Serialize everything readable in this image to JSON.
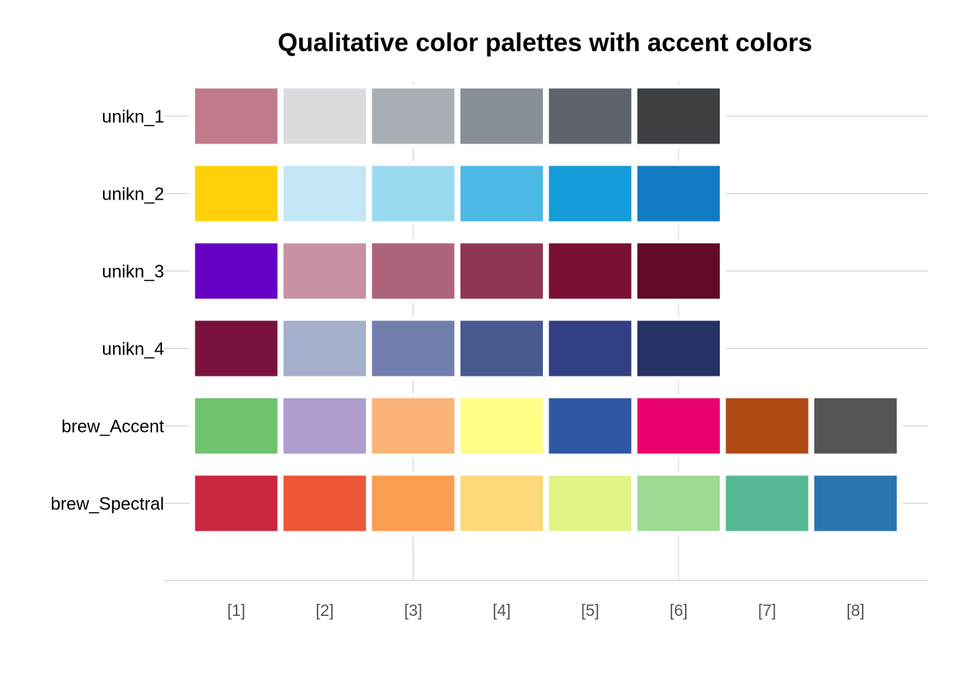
{
  "chart_data": {
    "type": "table",
    "title": "Qualitative color palettes with accent colors",
    "xlabel": "",
    "ylabel": "",
    "x_tick_labels": [
      "[1]",
      "[2]",
      "[3]",
      "[4]",
      "[5]",
      "[6]",
      "[7]",
      "[8]"
    ],
    "gridline_positions": [
      3,
      6
    ],
    "palettes": [
      {
        "name": "unikn_1",
        "colors": [
          "#C17A8B",
          "#DADBDF",
          "#A9ADB4",
          "#888E95",
          "#5F646C",
          "#3D4043"
        ]
      },
      {
        "name": "unikn_2",
        "colors": [
          "#FFD10A",
          "#C3E7F6",
          "#9ADAF1",
          "#4DB9E6",
          "#149BD9",
          "#127BC4"
        ]
      },
      {
        "name": "unikn_3",
        "colors": [
          "#6600C4",
          "#C892A2",
          "#AD6479",
          "#8F3653",
          "#790F35",
          "#610B27"
        ]
      },
      {
        "name": "unikn_4",
        "colors": [
          "#79133E",
          "#A4AFCC",
          "#717EAD",
          "#47598F",
          "#323F83",
          "#263164"
        ]
      },
      {
        "name": "brew_Accent",
        "colors": [
          "#71C26D",
          "#AF9DCB",
          "#FBB378",
          "#FFFF86",
          "#2D58A3",
          "#E8006E",
          "#B04A15",
          "#555555"
        ]
      },
      {
        "name": "brew_Spectral",
        "colors": [
          "#C9273D",
          "#EE5735",
          "#FA9E51",
          "#FDD97C",
          "#E2F486",
          "#9FD994",
          "#56B993",
          "#2A75B1"
        ]
      }
    ]
  }
}
